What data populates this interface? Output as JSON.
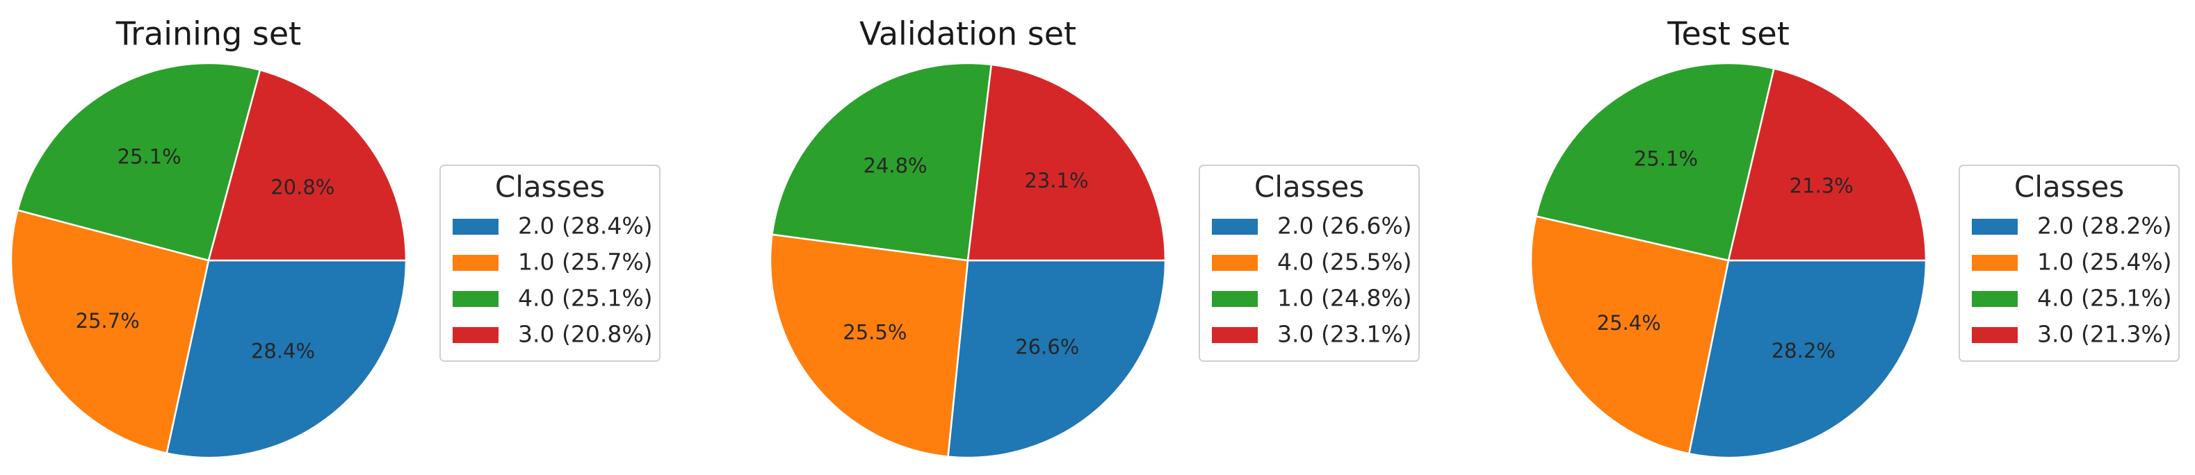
{
  "chart_data": [
    {
      "type": "pie",
      "title": "Training set",
      "legend_title": "Classes",
      "legend_placement": "right",
      "slices": [
        {
          "label": "2.0",
          "value": 28.4,
          "pct_text": "28.4%",
          "legend_text": "2.0 (28.4%)",
          "color": "#1f77b4"
        },
        {
          "label": "1.0",
          "value": 25.7,
          "pct_text": "25.7%",
          "legend_text": "1.0 (25.7%)",
          "color": "#ff7f0e"
        },
        {
          "label": "4.0",
          "value": 25.1,
          "pct_text": "25.1%",
          "legend_text": "4.0 (25.1%)",
          "color": "#2ca02c"
        },
        {
          "label": "3.0",
          "value": 20.8,
          "pct_text": "20.8%",
          "legend_text": "3.0 (20.8%)",
          "color": "#d62728"
        }
      ]
    },
    {
      "type": "pie",
      "title": "Validation set",
      "legend_title": "Classes",
      "legend_placement": "right",
      "slices": [
        {
          "label": "2.0",
          "value": 26.6,
          "pct_text": "26.6%",
          "legend_text": "2.0 (26.6%)",
          "color": "#1f77b4"
        },
        {
          "label": "4.0",
          "value": 25.5,
          "pct_text": "25.5%",
          "legend_text": "4.0 (25.5%)",
          "color": "#ff7f0e"
        },
        {
          "label": "1.0",
          "value": 24.8,
          "pct_text": "24.8%",
          "legend_text": "1.0 (24.8%)",
          "color": "#2ca02c"
        },
        {
          "label": "3.0",
          "value": 23.1,
          "pct_text": "23.1%",
          "legend_text": "3.0 (23.1%)",
          "color": "#d62728"
        }
      ]
    },
    {
      "type": "pie",
      "title": "Test set",
      "legend_title": "Classes",
      "legend_placement": "right",
      "slices": [
        {
          "label": "2.0",
          "value": 28.2,
          "pct_text": "28.2%",
          "legend_text": "2.0 (28.2%)",
          "color": "#1f77b4"
        },
        {
          "label": "1.0",
          "value": 25.4,
          "pct_text": "25.4%",
          "legend_text": "1.0 (25.4%)",
          "color": "#ff7f0e"
        },
        {
          "label": "4.0",
          "value": 25.1,
          "pct_text": "25.1%",
          "legend_text": "4.0 (25.1%)",
          "color": "#2ca02c"
        },
        {
          "label": "3.0",
          "value": 21.3,
          "pct_text": "21.3%",
          "legend_text": "3.0 (21.3%)",
          "color": "#d62728"
        }
      ]
    }
  ]
}
